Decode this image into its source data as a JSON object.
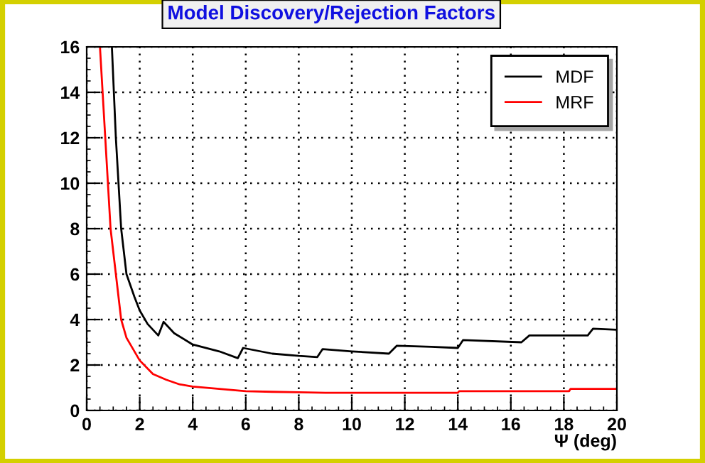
{
  "chart_data": {
    "type": "line",
    "title": "Model Discovery/Rejection Factors",
    "xlabel": "Ψ (deg)",
    "xlim": [
      0,
      20
    ],
    "xticks": [
      0,
      2,
      4,
      6,
      8,
      10,
      12,
      14,
      16,
      18,
      20
    ],
    "ylim": [
      0,
      16
    ],
    "yticks": [
      0,
      2,
      4,
      6,
      8,
      10,
      12,
      14,
      16
    ],
    "grid": true,
    "legend": "top right",
    "series": [
      {
        "name": "MDF",
        "color": "#000000",
        "x": [
          0.95,
          1.1,
          1.3,
          1.5,
          1.8,
          2.0,
          2.3,
          2.7,
          2.9,
          3.3,
          4,
          5,
          5.7,
          5.9,
          7,
          8,
          8.7,
          8.9,
          10,
          11.4,
          11.7,
          13,
          14,
          14.2,
          16.4,
          16.7,
          18,
          18.9,
          19.1,
          20
        ],
        "values": [
          16,
          12,
          8,
          6,
          5,
          4.4,
          3.8,
          3.3,
          3.9,
          3.4,
          2.9,
          2.6,
          2.3,
          2.75,
          2.5,
          2.4,
          2.35,
          2.7,
          2.6,
          2.5,
          2.85,
          2.8,
          2.75,
          3.1,
          3.0,
          3.3,
          3.3,
          3.3,
          3.6,
          3.55
        ]
      },
      {
        "name": "MRF",
        "color": "#ff0000",
        "x": [
          0.5,
          0.7,
          0.9,
          1.1,
          1.3,
          1.5,
          2,
          2.5,
          3,
          3.5,
          4,
          5,
          6,
          7,
          8,
          9,
          14,
          14.05,
          18.2,
          18.25,
          20
        ],
        "values": [
          16,
          12,
          8,
          6,
          4,
          3.2,
          2.2,
          1.6,
          1.35,
          1.15,
          1.05,
          0.95,
          0.85,
          0.82,
          0.8,
          0.78,
          0.78,
          0.85,
          0.85,
          0.95,
          0.95
        ]
      }
    ]
  }
}
